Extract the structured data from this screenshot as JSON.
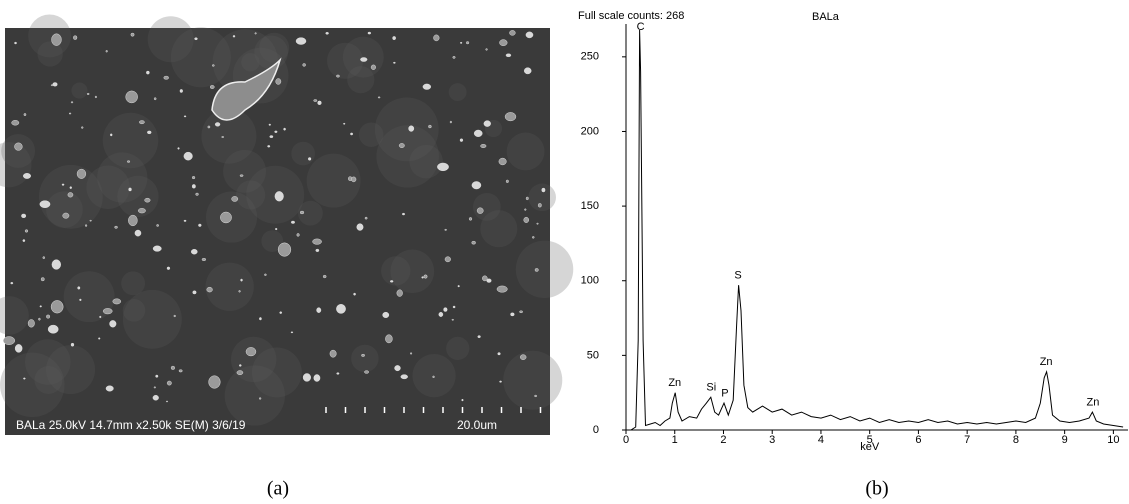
{
  "image": {
    "caption": "BALa 25.0kV 14.7mm x2.50k SE(M) 3/6/19",
    "scale_label": "20.0um",
    "panel_label": "(a)"
  },
  "chart_data": {
    "type": "line",
    "title": "BALa",
    "subtitle": "Full scale counts: 268",
    "x_label": "keV",
    "panel_label": "(b)",
    "color": "#000000",
    "x": [
      0,
      0.1,
      0.2,
      0.25,
      0.28,
      0.3,
      0.35,
      0.4,
      0.5,
      0.6,
      0.7,
      0.8,
      0.9,
      0.95,
      1.01,
      1.07,
      1.15,
      1.3,
      1.45,
      1.55,
      1.65,
      1.74,
      1.82,
      1.9,
      2.01,
      2.1,
      2.2,
      2.27,
      2.31,
      2.36,
      2.42,
      2.5,
      2.6,
      2.8,
      3.0,
      3.2,
      3.4,
      3.6,
      3.8,
      4.0,
      4.2,
      4.4,
      4.6,
      4.8,
      5.0,
      5.2,
      5.4,
      5.6,
      5.8,
      6.0,
      6.2,
      6.4,
      6.6,
      6.8,
      7.0,
      7.2,
      7.4,
      7.6,
      7.8,
      8.0,
      8.2,
      8.4,
      8.5,
      8.58,
      8.63,
      8.68,
      8.75,
      8.9,
      9.1,
      9.3,
      9.5,
      9.57,
      9.65,
      9.8,
      10.0,
      10.2
    ],
    "values": [
      0,
      0,
      2,
      60,
      268,
      240,
      60,
      3,
      4,
      5,
      3,
      6,
      8,
      18,
      25,
      12,
      6,
      9,
      8,
      14,
      18,
      22,
      12,
      10,
      18,
      10,
      20,
      70,
      97,
      80,
      30,
      15,
      12,
      16,
      12,
      14,
      10,
      12,
      9,
      8,
      10,
      7,
      9,
      6,
      8,
      5,
      7,
      5,
      6,
      5,
      7,
      5,
      6,
      4,
      5,
      4,
      5,
      4,
      5,
      6,
      5,
      8,
      18,
      35,
      39,
      30,
      10,
      6,
      5,
      6,
      8,
      12,
      6,
      4,
      3,
      2
    ],
    "xlim": [
      0,
      10.3
    ],
    "ylim": [
      0,
      272
    ],
    "xticks": [
      0,
      1,
      2,
      3,
      4,
      5,
      6,
      7,
      8,
      9,
      10
    ],
    "yticks": [
      0,
      50,
      100,
      150,
      200,
      250
    ],
    "annotations": [
      {
        "text": "C",
        "x": 0.3,
        "y": 268
      },
      {
        "text": "Zn",
        "x": 1.0,
        "y": 26
      },
      {
        "text": "Si",
        "x": 1.75,
        "y": 23
      },
      {
        "text": "P",
        "x": 2.03,
        "y": 19
      },
      {
        "text": "S",
        "x": 2.3,
        "y": 98
      },
      {
        "text": "Zn",
        "x": 8.62,
        "y": 40
      },
      {
        "text": "Zn",
        "x": 9.58,
        "y": 13
      }
    ]
  }
}
